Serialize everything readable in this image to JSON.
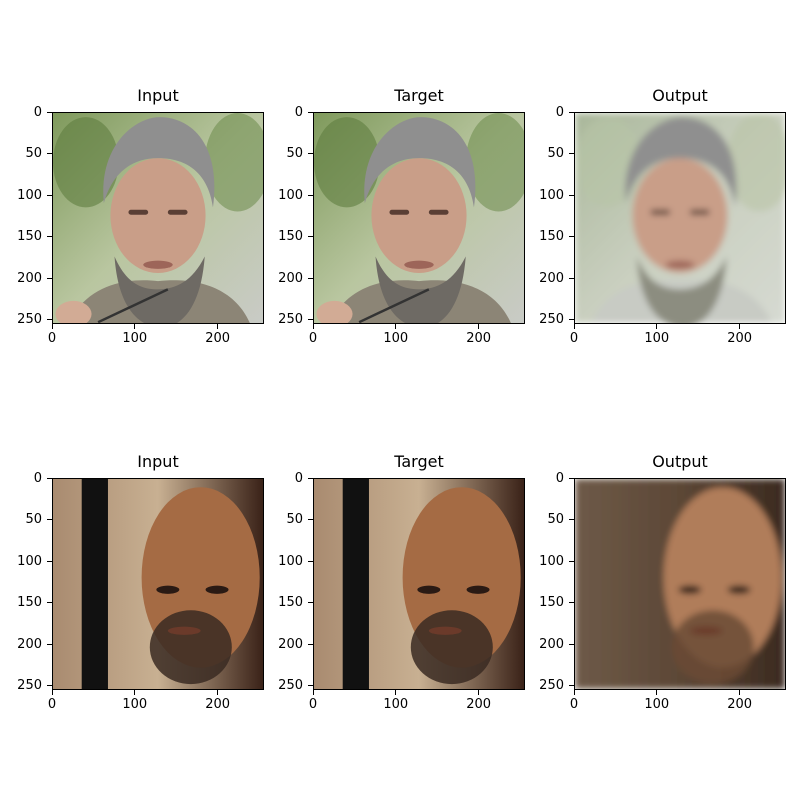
{
  "figure": {
    "rows": [
      {
        "panels": [
          {
            "title": "Input",
            "scene": "gray-beard-man",
            "quality": "sharp"
          },
          {
            "title": "Target",
            "scene": "gray-beard-man",
            "quality": "sharp"
          },
          {
            "title": "Output",
            "scene": "gray-beard-man",
            "quality": "blurry"
          }
        ]
      },
      {
        "panels": [
          {
            "title": "Input",
            "scene": "bald-bearded-man",
            "quality": "sharp"
          },
          {
            "title": "Target",
            "scene": "bald-bearded-man",
            "quality": "sharp"
          },
          {
            "title": "Output",
            "scene": "bald-bearded-man",
            "quality": "blurry"
          }
        ]
      }
    ],
    "y_ticks": [
      "0",
      "50",
      "100",
      "150",
      "200",
      "250"
    ],
    "x_ticks": [
      "0",
      "100",
      "200"
    ]
  }
}
